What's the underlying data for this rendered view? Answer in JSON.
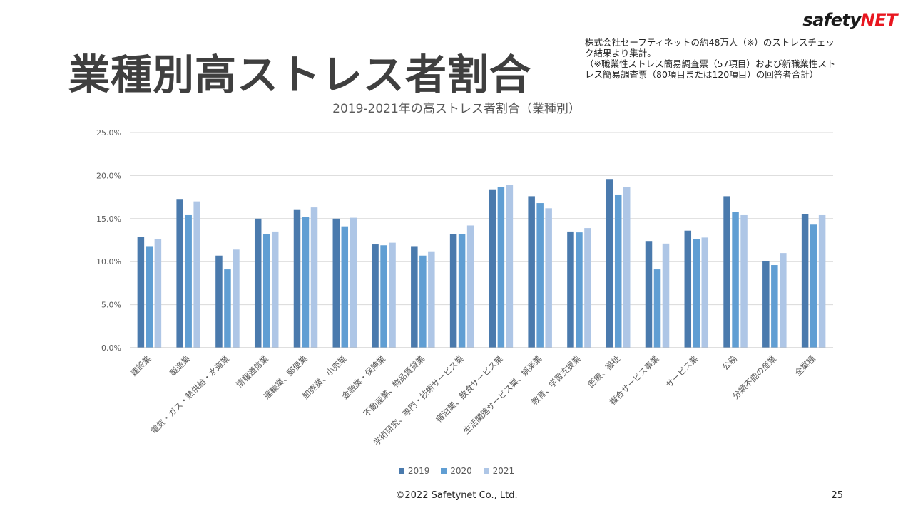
{
  "slide": {
    "title": "業種別高ストレス者割合",
    "note_lines": [
      "株式会社セーフティネットの約48万人（※）のストレスチェッ",
      "ク結果より集計。",
      "（※職業性ストレス簡易調査票（57項目）および新職業性スト",
      "レス簡易調査票（80項目または120項目）の回答者合計）"
    ],
    "logo": {
      "text_main": "safety",
      "text_accent": "NET"
    },
    "footer": "©2022 Safetynet Co., Ltd.",
    "page_number": "25"
  },
  "colors": {
    "2019": "#4a7aad",
    "2020": "#609ed3",
    "2021": "#aec6e6",
    "grid": "#d9d9d9",
    "axis_text": "#595959"
  },
  "chart_data": {
    "type": "bar",
    "title": "2019-2021年の高ストレス者割合（業種別）",
    "xlabel": "",
    "ylabel": "",
    "ylim": [
      0,
      25
    ],
    "yticks": [
      "0.0%",
      "5.0%",
      "10.0%",
      "15.0%",
      "20.0%",
      "25.0%"
    ],
    "grid": true,
    "legend_position": "bottom",
    "categories": [
      "建設業",
      "製造業",
      "電気・ガス・熱供給・水道業",
      "情報通信業",
      "運輸業、郵便業",
      "卸売業、小売業",
      "金融業・保険業",
      "不動産業、物品賃貸業",
      "学術研究、専門・技術サービス業",
      "宿泊業、飲食サービス業",
      "生活関連サービス業、娯楽業",
      "教育、学習支援業",
      "医療、福祉",
      "複合サービス事業",
      "サービス業",
      "公務",
      "分類不能の産業",
      "全業種"
    ],
    "series": [
      {
        "name": "2019",
        "values": [
          12.9,
          17.2,
          10.7,
          15.0,
          16.0,
          15.0,
          12.0,
          11.8,
          13.2,
          18.4,
          17.6,
          13.5,
          19.6,
          12.4,
          13.6,
          17.6,
          10.1,
          15.5
        ]
      },
      {
        "name": "2020",
        "values": [
          11.8,
          15.4,
          9.1,
          13.2,
          15.2,
          14.1,
          11.9,
          10.7,
          13.2,
          18.7,
          16.8,
          13.4,
          17.8,
          9.1,
          12.6,
          15.8,
          9.6,
          14.3
        ]
      },
      {
        "name": "2021",
        "values": [
          12.6,
          17.0,
          11.4,
          13.5,
          16.3,
          15.1,
          12.2,
          11.2,
          14.2,
          18.9,
          16.2,
          13.9,
          18.7,
          12.1,
          12.8,
          15.4,
          11.0,
          15.4
        ]
      }
    ]
  }
}
